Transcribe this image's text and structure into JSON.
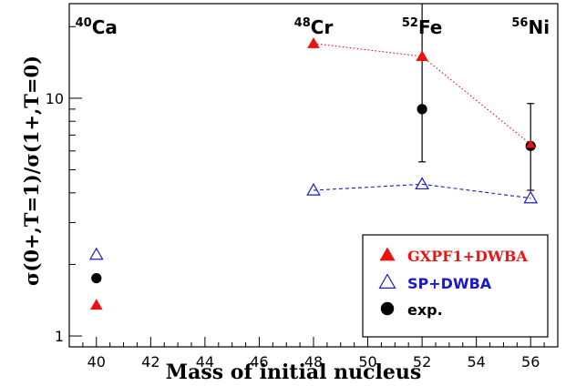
{
  "chart_data": {
    "type": "scatter",
    "xlabel": "Mass of initial nucleus",
    "ylabel": "σ(0+,T=1)/σ(1+,T=0)",
    "xlim": [
      39,
      57
    ],
    "ylim": [
      0.9,
      25
    ],
    "yscale": "log",
    "xticks": [
      40,
      42,
      44,
      46,
      48,
      50,
      52,
      54,
      56
    ],
    "yticks": [
      1,
      10
    ],
    "grid": false,
    "legend_position": "bottom-right",
    "nuclei": [
      {
        "mass": "40",
        "symbol": "Ca",
        "x": 40
      },
      {
        "mass": "48",
        "symbol": "Cr",
        "x": 48
      },
      {
        "mass": "52",
        "symbol": "Fe",
        "x": 52
      },
      {
        "mass": "56",
        "symbol": "Ni",
        "x": 56
      }
    ],
    "series": [
      {
        "name": "GXPF1+DWBA",
        "marker": "filled-triangle",
        "color": "#ee1111",
        "connect": [
          48,
          52,
          56
        ],
        "line_style": "dotted",
        "x": [
          40,
          48,
          52,
          56
        ],
        "y": [
          1.35,
          17.0,
          15.0,
          6.4
        ]
      },
      {
        "name": "SP+DWBA",
        "marker": "open-triangle",
        "color": "#1a1acc",
        "connect": [
          48,
          52,
          56
        ],
        "line_style": "dashed",
        "x": [
          40,
          48,
          52,
          56
        ],
        "y": [
          2.2,
          4.1,
          4.35,
          3.8
        ]
      },
      {
        "name": "exp.",
        "marker": "filled-circle",
        "color": "#000000",
        "x": [
          40,
          52,
          56
        ],
        "y": [
          1.75,
          9.0,
          6.3
        ],
        "err_low": [
          null,
          5.4,
          4.1
        ],
        "err_high": [
          null,
          25,
          9.5
        ]
      }
    ]
  }
}
